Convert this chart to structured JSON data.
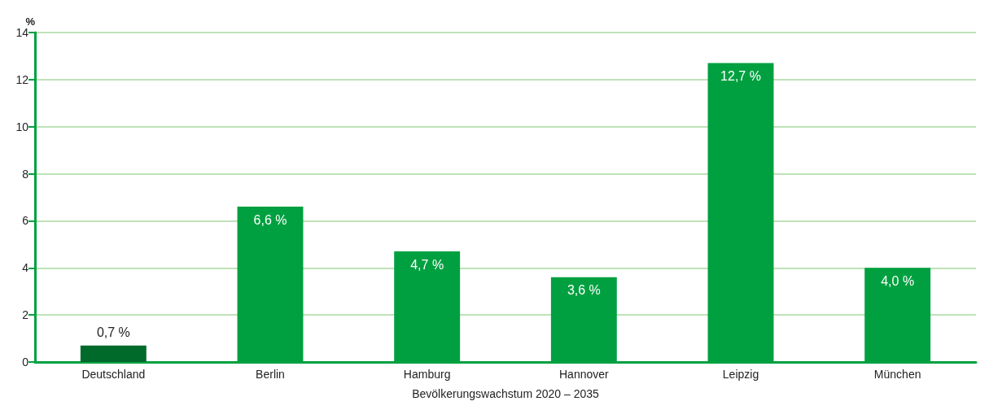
{
  "chart_data": {
    "type": "bar",
    "ylabel": "%",
    "xlabel": "Bevölkerungswachstum 2020 – 2035",
    "categories": [
      "Deutschland",
      "Berlin",
      "Hamburg",
      "Hannover",
      "Leipzig",
      "München"
    ],
    "values": [
      0.7,
      6.6,
      4.7,
      3.6,
      12.7,
      4.0
    ],
    "colors": [
      "#006a2a",
      "#00a040",
      "#00a040",
      "#00a040",
      "#00a040",
      "#00a040"
    ],
    "value_labels": [
      "0,7 %",
      "6,6 %",
      "4,7 %",
      "3,6 %",
      "12,7 %",
      "4,0 %"
    ],
    "ylim": [
      0,
      14
    ],
    "yticks": [
      0,
      2,
      4,
      6,
      8,
      10,
      12,
      14
    ],
    "grid": "y"
  }
}
